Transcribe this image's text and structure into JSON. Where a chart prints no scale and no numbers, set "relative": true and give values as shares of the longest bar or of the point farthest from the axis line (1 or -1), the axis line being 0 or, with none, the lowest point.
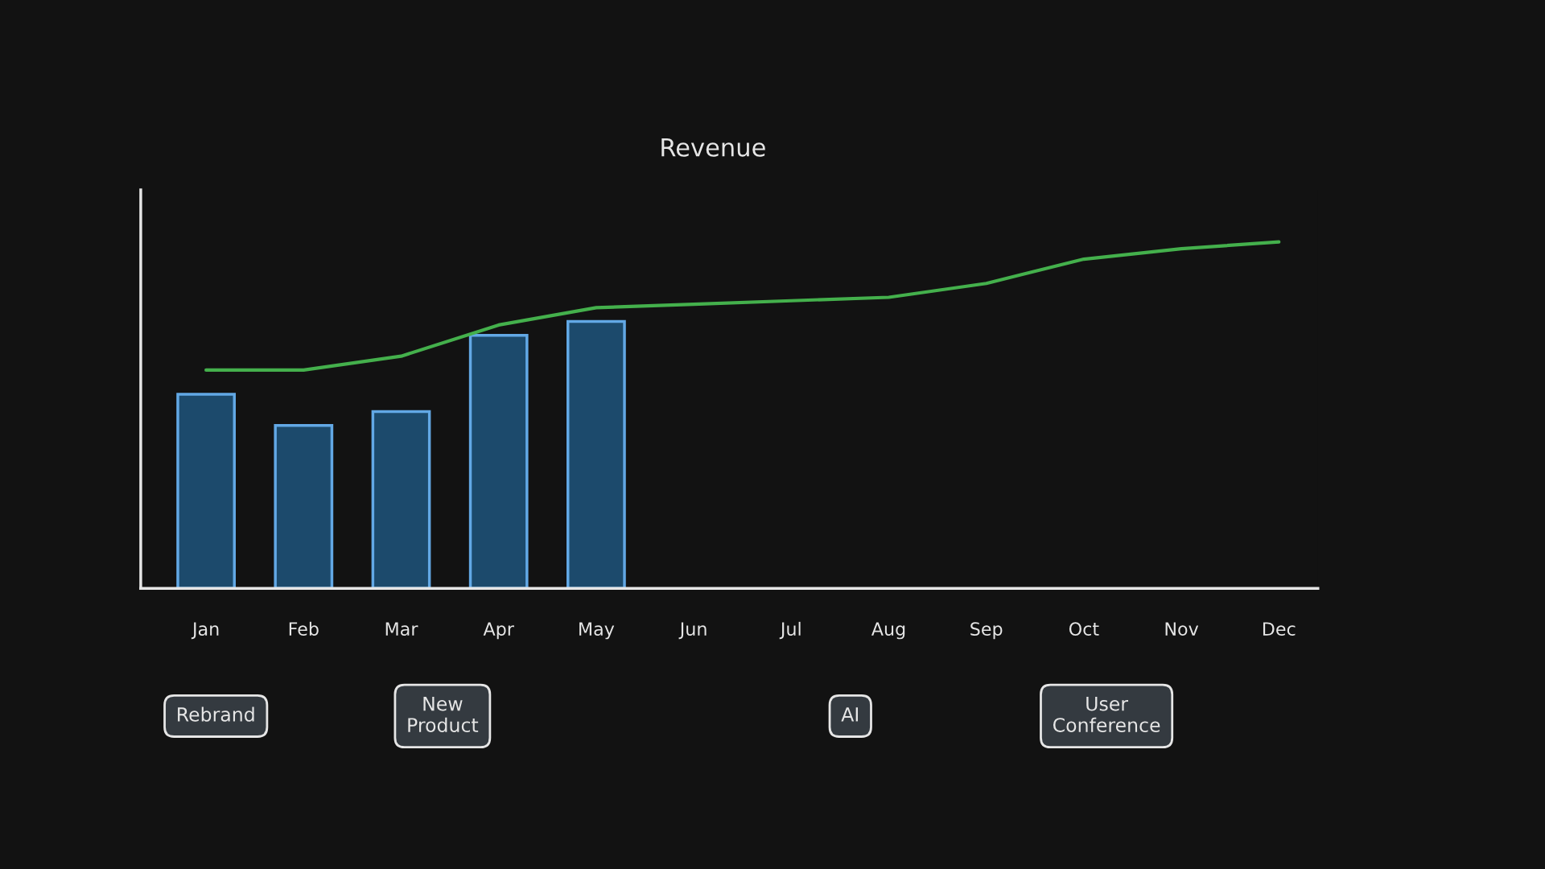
{
  "chart_data": {
    "type": "bar",
    "title": "Revenue",
    "relative": true,
    "categories": [
      "Jan",
      "Feb",
      "Mar",
      "Apr",
      "May",
      "Jun",
      "Jul",
      "Aug",
      "Sep",
      "Oct",
      "Nov",
      "Dec"
    ],
    "series": [
      {
        "color": "#1c4a6c",
        "values": [
          0.56,
          0.47,
          0.51,
          0.73,
          0.77,
          null,
          null,
          null,
          null,
          null,
          null,
          null
        ]
      },
      {
        "type": "line",
        "color": "#44b04c",
        "values": [
          0.63,
          0.63,
          0.67,
          0.76,
          0.81,
          0.82,
          0.83,
          0.84,
          0.88,
          0.95,
          0.98,
          1.0
        ]
      }
    ],
    "annotations": [
      "Rebrand",
      "New\nProduct",
      "AI",
      "User\nConference"
    ],
    "line_style": "solid"
  }
}
